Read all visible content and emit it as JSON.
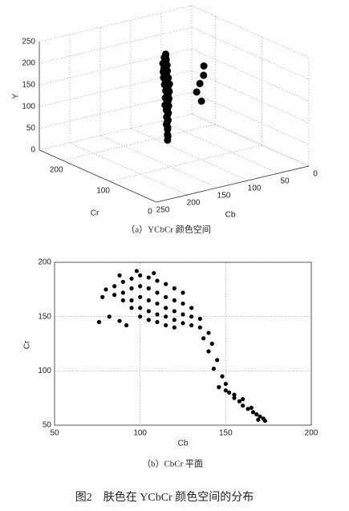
{
  "chart_data": [
    {
      "type": "scatter3d",
      "caption": "（a）YCbCr 颜色空间",
      "xlabel": "Cb",
      "ylabel": "Cr",
      "zlabel": "Y",
      "color": "#000000",
      "xlim": [
        0,
        250
      ],
      "ylim": [
        0,
        250
      ],
      "zlim": [
        0,
        250
      ],
      "xticks": [
        0,
        50,
        100,
        150,
        200,
        250
      ],
      "yticks": [
        0,
        100,
        200
      ],
      "zticks": [
        0,
        50,
        100,
        150,
        200,
        250
      ],
      "grid": true,
      "x": [
        112,
        118,
        108,
        110,
        118,
        122,
        105,
        108,
        115,
        122,
        102,
        106,
        114,
        120,
        100,
        105,
        112,
        120,
        100,
        105,
        112,
        118,
        98,
        106,
        113,
        120,
        100,
        108,
        115,
        122,
        102,
        110,
        117,
        104,
        112,
        118,
        106,
        114,
        108,
        120,
        115,
        110,
        116,
        112,
        115,
        80,
        82,
        85,
        88,
        84
      ],
      "y": [
        160,
        155,
        165,
        162,
        158,
        150,
        168,
        165,
        160,
        152,
        170,
        166,
        160,
        154,
        172,
        166,
        160,
        152,
        170,
        164,
        158,
        152,
        170,
        162,
        156,
        150,
        168,
        160,
        154,
        148,
        166,
        158,
        152,
        164,
        156,
        150,
        162,
        154,
        160,
        148,
        152,
        158,
        150,
        156,
        152,
        120,
        118,
        122,
        125,
        120
      ],
      "z": [
        215,
        215,
        215,
        200,
        200,
        200,
        200,
        185,
        185,
        185,
        185,
        170,
        170,
        170,
        170,
        155,
        155,
        155,
        155,
        140,
        140,
        140,
        140,
        125,
        125,
        125,
        125,
        110,
        110,
        110,
        110,
        95,
        95,
        95,
        80,
        80,
        80,
        65,
        65,
        65,
        50,
        50,
        35,
        35,
        25,
        200,
        180,
        160,
        140,
        120
      ]
    },
    {
      "type": "scatter",
      "caption": "（b）CbCr 平面",
      "xlabel": "Cb",
      "ylabel": "Cr",
      "color": "#000000",
      "xlim": [
        50,
        200
      ],
      "ylim": [
        50,
        200
      ],
      "xticks": [
        50,
        100,
        150,
        200
      ],
      "yticks": [
        50,
        100,
        150,
        200
      ],
      "grid": true,
      "x": [
        80,
        85,
        90,
        95,
        100,
        105,
        110,
        115,
        120,
        125,
        85,
        90,
        95,
        100,
        105,
        110,
        115,
        120,
        125,
        130,
        90,
        95,
        100,
        105,
        110,
        115,
        120,
        125,
        130,
        135,
        95,
        100,
        105,
        110,
        115,
        120,
        125,
        130,
        135,
        100,
        105,
        110,
        115,
        120,
        98,
        108,
        88,
        78,
        82,
        88,
        76,
        92,
        140,
        137,
        142,
        140,
        145,
        143,
        148,
        150,
        146,
        152,
        155,
        158,
        160,
        163,
        166,
        168,
        170,
        172,
        169,
        173,
        150,
        155,
        160,
        165
      ],
      "y": [
        175,
        178,
        182,
        185,
        188,
        186,
        183,
        180,
        176,
        172,
        170,
        172,
        176,
        178,
        176,
        172,
        168,
        165,
        162,
        158,
        165,
        165,
        168,
        165,
        162,
        158,
        155,
        152,
        150,
        148,
        158,
        158,
        155,
        152,
        150,
        147,
        144,
        142,
        140,
        150,
        147,
        145,
        142,
        140,
        192,
        190,
        188,
        168,
        150,
        146,
        145,
        142,
        135,
        130,
        125,
        118,
        110,
        102,
        95,
        88,
        85,
        80,
        75,
        72,
        68,
        65,
        62,
        60,
        58,
        56,
        55,
        54,
        82,
        78,
        74,
        66
      ]
    }
  ],
  "figure_caption": "图2　肤色在 YCbCr 颜色空间的分布"
}
